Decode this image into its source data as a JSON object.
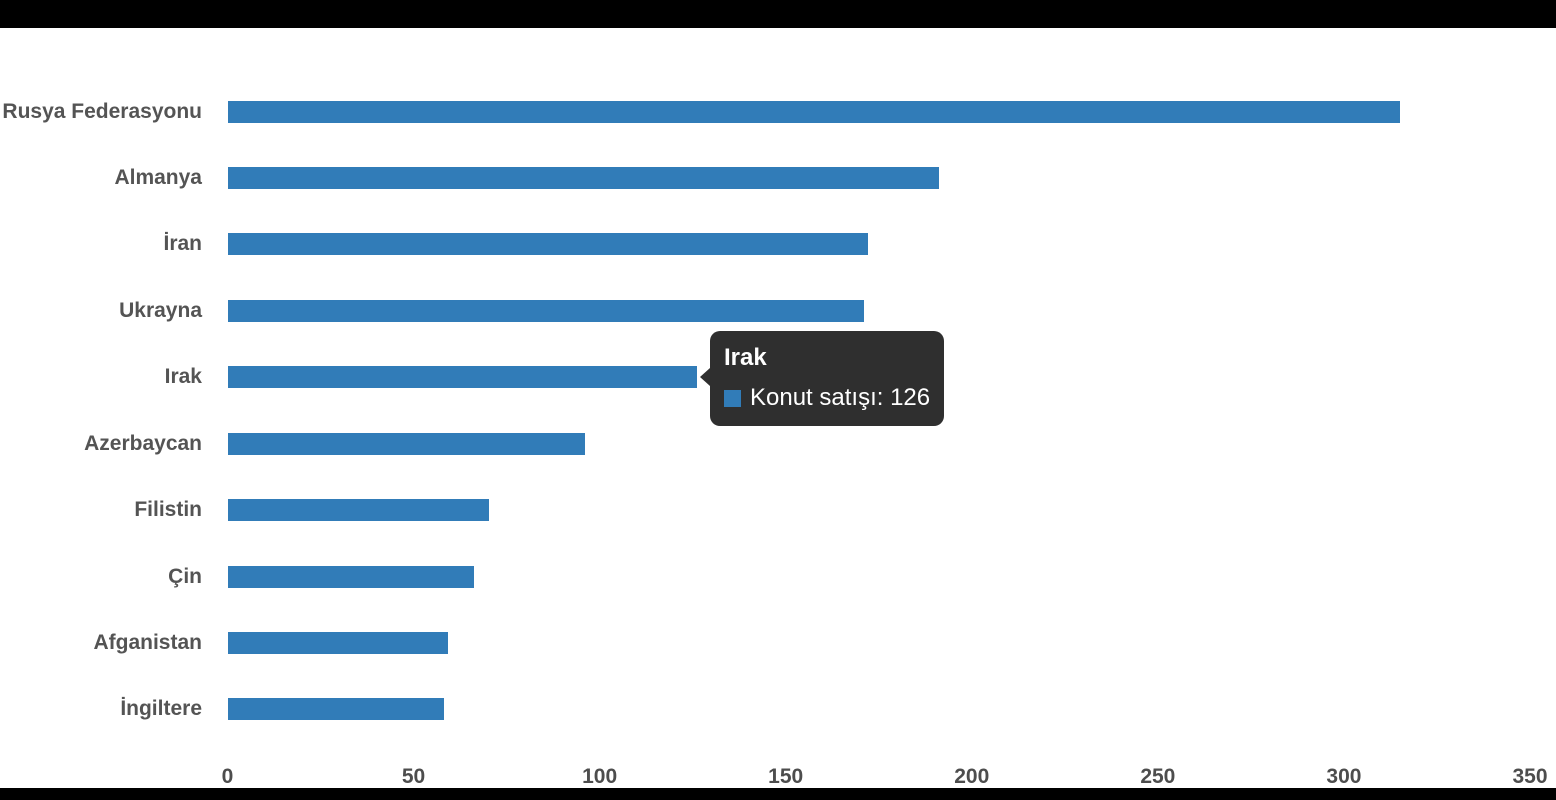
{
  "page": {
    "top_band_color": "#000000",
    "bottom_band_color": "#000000",
    "background_color": "#ffffff"
  },
  "chart_data": {
    "type": "bar",
    "orientation": "horizontal",
    "title": "",
    "xlabel": "",
    "ylabel": "",
    "series_name": "Konut satışı",
    "categories": [
      "Rusya Federasyonu",
      "Almanya",
      "İran",
      "Ukrayna",
      "Irak",
      "Azerbaycan",
      "Filistin",
      "Çin",
      "Afganistan",
      "İngiltere"
    ],
    "values": [
      315,
      191,
      172,
      171,
      126,
      96,
      70,
      66,
      59,
      58
    ],
    "xlim": [
      0,
      350
    ],
    "x_ticks": [
      0,
      50,
      100,
      150,
      200,
      250,
      300,
      350
    ],
    "grid": false,
    "legend_position": "none",
    "bar_color": "#317CB8",
    "category_label_color": "#545454",
    "tick_label_color": "#4d4d4d"
  },
  "tooltip": {
    "title": "Irak",
    "text": "Konut satışı: 126",
    "swatch_color": "#317CB8",
    "background": "rgba(10,10,10,0.85)",
    "text_color": "#ffffff"
  }
}
